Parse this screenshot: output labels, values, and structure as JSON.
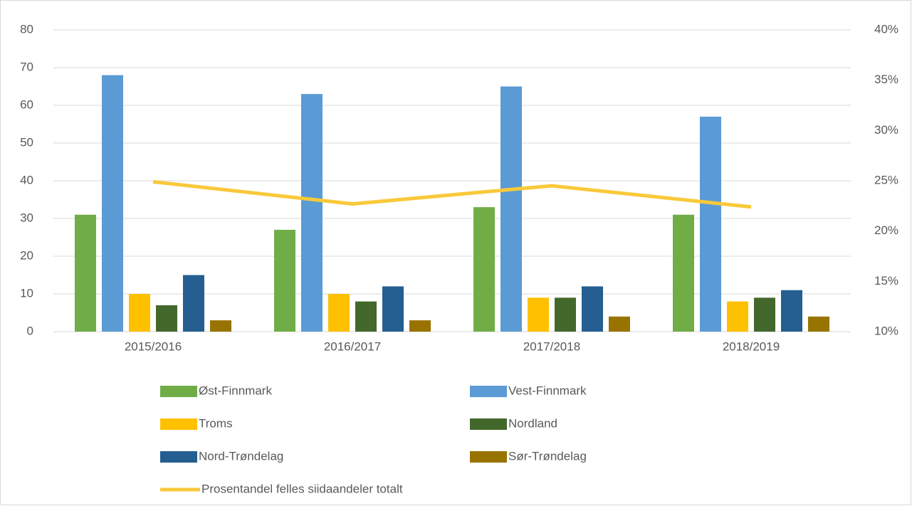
{
  "chart_data": {
    "type": "bar",
    "categories": [
      "2015/2016",
      "2016/2017",
      "2017/2018",
      "2018/2019"
    ],
    "series": [
      {
        "name": "Øst-Finnmark",
        "color": "#70ad47",
        "values": [
          31,
          27,
          33,
          31
        ]
      },
      {
        "name": "Vest-Finnmark",
        "color": "#5b9bd5",
        "values": [
          68,
          63,
          65,
          57
        ]
      },
      {
        "name": "Troms",
        "color": "#ffc000",
        "values": [
          10,
          10,
          9,
          8
        ]
      },
      {
        "name": "Nordland",
        "color": "#43682b",
        "values": [
          7,
          8,
          9,
          9
        ]
      },
      {
        "name": "Nord-Trøndelag",
        "color": "#255e91",
        "values": [
          15,
          12,
          12,
          11
        ]
      },
      {
        "name": "Sør-Trøndelag",
        "color": "#997300",
        "values": [
          3,
          3,
          4,
          4
        ]
      },
      {
        "name": "Prosentandel felles siidaandeler totalt",
        "color": "#f9c93a",
        "type": "line",
        "axis": "y2",
        "values": [
          24.9,
          22.7,
          24.5,
          22.4
        ]
      }
    ],
    "ylim": [
      0,
      80
    ],
    "yticks": [
      0,
      10,
      20,
      30,
      40,
      50,
      60,
      70,
      80
    ],
    "y2lim": [
      10,
      40
    ],
    "y2ticks": [
      {
        "value": 10,
        "label": "10%"
      },
      {
        "value": 15,
        "label": "15%"
      },
      {
        "value": 20,
        "label": "20%"
      },
      {
        "value": 25,
        "label": "25%"
      },
      {
        "value": 30,
        "label": "30%"
      },
      {
        "value": 35,
        "label": "35%"
      },
      {
        "value": 40,
        "label": "40%"
      }
    ],
    "grid": true
  }
}
